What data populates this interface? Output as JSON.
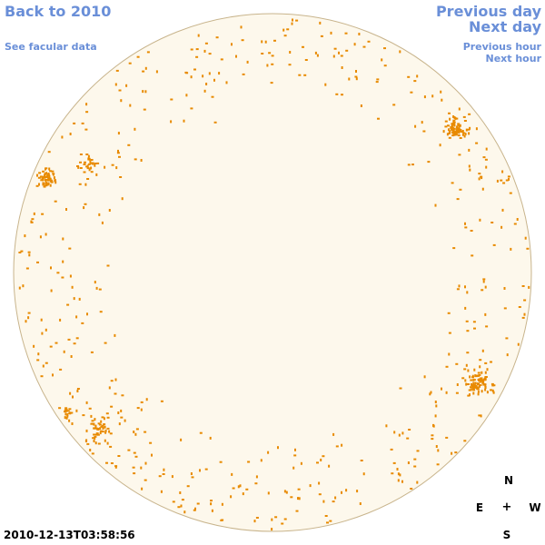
{
  "nav": {
    "back": "Back to 2010",
    "facular": "See facular data",
    "prev_day": "Previous day",
    "next_day": "Next day",
    "prev_hour": "Previous hour",
    "next_hour": "Next hour"
  },
  "compass": {
    "north": "N",
    "east": "E",
    "center": "+",
    "west": "W",
    "south": "S"
  },
  "timestamp": "2010-12-13T03:58:56",
  "colors": {
    "disk_fill": "#fdf8ec",
    "disk_edge": "#c8b48c",
    "faculae": "#e88a00",
    "link": "#6a8fd8"
  }
}
